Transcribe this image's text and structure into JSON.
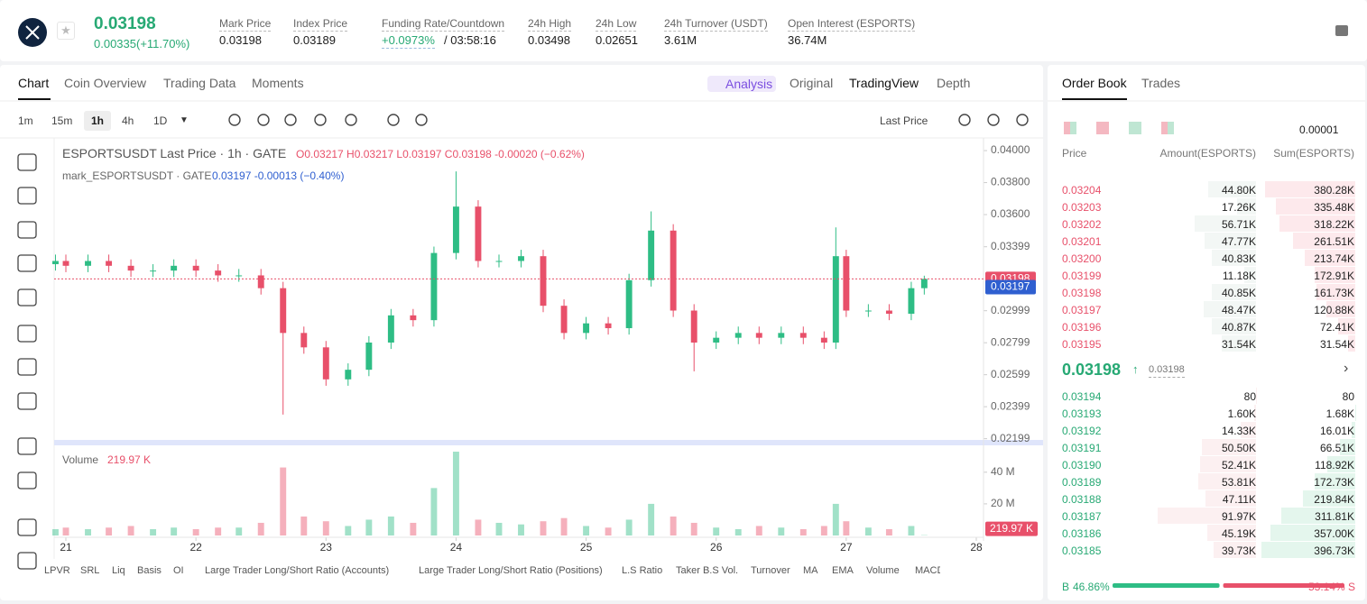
{
  "header": {
    "price": "0.03198",
    "change": "0.00335(+11.70%)",
    "stats": [
      {
        "label": "Mark Price",
        "value": "0.03198"
      },
      {
        "label": "Index Price",
        "value": "0.03189"
      },
      {
        "label": "Funding Rate/Countdown",
        "value": "+0.0973%",
        "extra": "/ 03:58:16"
      },
      {
        "label": "24h High",
        "value": "0.03498"
      },
      {
        "label": "24h Low",
        "value": "0.02651"
      },
      {
        "label": "24h Turnover (USDT)",
        "value": "3.61M"
      },
      {
        "label": "Open Interest (ESPORTS)",
        "value": "36.74M"
      }
    ]
  },
  "chart_tabs": [
    "Chart",
    "Coin Overview",
    "Trading Data",
    "Moments"
  ],
  "view_tabs": [
    "Analysis",
    "Original",
    "TradingView",
    "Depth"
  ],
  "intervals": [
    "1m",
    "15m",
    "1h",
    "4h",
    "1D"
  ],
  "price_source": "Last Price",
  "legend": {
    "title": "ESPORTSUSDT Last Price · 1h · GATE",
    "ohlc": "O0.03217 H0.03217 L0.03197 C0.03198 -0.00020 (−0.62%)",
    "mark": "mark_ESPORTSUSDT · GATE",
    "mark_values": "0.03197 -0.00013 (−0.40%)",
    "volume": "Volume"
  },
  "indicators": [
    "LPVR",
    "SRL",
    "Liq",
    "Basis",
    "OI",
    "Large Trader Long/Short Ratio (Accounts)",
    "Large Trader Long/Short Ratio (Positions)",
    "L.S Ratio",
    "Taker B.S Vol.",
    "Turnover",
    "MA",
    "EMA",
    "Volume",
    "MACD"
  ],
  "chart_data": {
    "type": "candlestick",
    "x": [
      20.92,
      21.0,
      21.17,
      21.33,
      21.5,
      21.67,
      21.83,
      22.0,
      22.17,
      22.33,
      22.5,
      22.67,
      22.83,
      23.0,
      23.17,
      23.33,
      23.5,
      23.67,
      23.83,
      24.0,
      24.17,
      24.33,
      24.5,
      24.67,
      24.83,
      25.0,
      25.17,
      25.33,
      25.5,
      25.67,
      25.83,
      26.0,
      26.17,
      26.33,
      26.5,
      26.67,
      26.83,
      26.92,
      27.0,
      27.17,
      27.33,
      27.5,
      27.6
    ],
    "open": [
      0.0329,
      0.0331,
      0.0328,
      0.0331,
      0.0328,
      0.0325,
      0.0325,
      0.0328,
      0.0325,
      0.0322,
      0.0322,
      0.0314,
      0.0286,
      0.0277,
      0.0257,
      0.0263,
      0.028,
      0.0297,
      0.0294,
      0.0336,
      0.0365,
      0.0331,
      0.0331,
      0.0334,
      0.0303,
      0.0286,
      0.0292,
      0.0289,
      0.0319,
      0.035,
      0.03,
      0.028,
      0.0283,
      0.0286,
      0.0283,
      0.0286,
      0.0283,
      0.028,
      0.0334,
      0.03,
      0.03,
      0.0298,
      0.0314
    ],
    "high": [
      0.0335,
      0.0335,
      0.0335,
      0.0335,
      0.0332,
      0.0329,
      0.0332,
      0.0332,
      0.0329,
      0.0326,
      0.0326,
      0.0318,
      0.029,
      0.0281,
      0.0267,
      0.0284,
      0.0301,
      0.0301,
      0.034,
      0.0387,
      0.0369,
      0.0335,
      0.0338,
      0.0338,
      0.0307,
      0.0296,
      0.0296,
      0.0323,
      0.0362,
      0.0354,
      0.0304,
      0.0287,
      0.029,
      0.029,
      0.029,
      0.029,
      0.0287,
      0.0352,
      0.0338,
      0.0304,
      0.0304,
      0.0318,
      0.03218
    ],
    "low": [
      0.0325,
      0.0324,
      0.0324,
      0.0324,
      0.0321,
      0.0321,
      0.0321,
      0.0321,
      0.0318,
      0.0318,
      0.031,
      0.0235,
      0.0273,
      0.0253,
      0.0253,
      0.0259,
      0.0276,
      0.029,
      0.029,
      0.0332,
      0.0327,
      0.0327,
      0.0327,
      0.0299,
      0.0282,
      0.0282,
      0.0285,
      0.0285,
      0.0315,
      0.0296,
      0.0262,
      0.0276,
      0.0279,
      0.0279,
      0.0279,
      0.0279,
      0.0276,
      0.0276,
      0.0296,
      0.0296,
      0.0294,
      0.0294,
      0.031
    ],
    "close": [
      0.0331,
      0.0328,
      0.0331,
      0.0328,
      0.0325,
      0.0325,
      0.0328,
      0.0325,
      0.0322,
      0.0322,
      0.0314,
      0.0286,
      0.0277,
      0.0257,
      0.0263,
      0.028,
      0.0297,
      0.0294,
      0.0336,
      0.0365,
      0.0331,
      0.0331,
      0.0334,
      0.0303,
      0.0286,
      0.0292,
      0.0289,
      0.0319,
      0.035,
      0.03,
      0.028,
      0.0283,
      0.0286,
      0.0283,
      0.0286,
      0.0283,
      0.028,
      0.0334,
      0.03,
      0.03,
      0.0298,
      0.0314,
      0.03198
    ],
    "volume": [
      4000000,
      5000000,
      4000000,
      5000000,
      6000000,
      4000000,
      5000000,
      4000000,
      5000000,
      5000000,
      8000000,
      43000000,
      12000000,
      9000000,
      6000000,
      10000000,
      12000000,
      8000000,
      30000000,
      53000000,
      10000000,
      8000000,
      7000000,
      9000000,
      11000000,
      6000000,
      5000000,
      10000000,
      20000000,
      12000000,
      8000000,
      5000000,
      4000000,
      6000000,
      5000000,
      4000000,
      6000000,
      20000000,
      9000000,
      5000000,
      4000000,
      6000000,
      219970
    ],
    "volume_label": "219.97 K",
    "xlim": [
      20.9,
      28.05
    ],
    "xticks": [
      21,
      22,
      23,
      24,
      25,
      26,
      27,
      28
    ],
    "ylim": [
      0.0218,
      0.04068
    ],
    "yticks": [
      {
        "value": 0.04,
        "label": "0.04000"
      },
      {
        "value": 0.038,
        "label": "0.03800"
      },
      {
        "value": 0.036,
        "label": "0.03600"
      },
      {
        "value": 0.03399,
        "label": "0.03399"
      },
      {
        "value": 0.02999,
        "label": "0.02999"
      },
      {
        "value": 0.02799,
        "label": "0.02799"
      },
      {
        "value": 0.02599,
        "label": "0.02599"
      },
      {
        "value": 0.02399,
        "label": "0.02399"
      },
      {
        "value": 0.02199,
        "label": "0.02199"
      }
    ],
    "volume_ylim": [
      0,
      57000000
    ],
    "volume_yticks": [
      {
        "value": 40000000,
        "label": "40 M"
      },
      {
        "value": 20000000,
        "label": "20 M"
      }
    ],
    "last_price": {
      "value": 0.03198,
      "label": "0.03198"
    },
    "mark_price": {
      "value": 0.03197,
      "label": "0.03197"
    },
    "up_color": "#2ebd85",
    "down_color": "#e8506a",
    "mark_color": "#2f5fd0"
  },
  "order_book": {
    "tabs": [
      "Order Book",
      "Trades"
    ],
    "precision": "0.00001",
    "columns": [
      "Price",
      "Amount(ESPORTS)",
      "Sum(ESPORTS)"
    ],
    "asks": [
      [
        "0.03204",
        "44.80K",
        "380.28K"
      ],
      [
        "0.03203",
        "17.26K",
        "335.48K"
      ],
      [
        "0.03202",
        "56.71K",
        "318.22K"
      ],
      [
        "0.03201",
        "47.77K",
        "261.51K"
      ],
      [
        "0.03200",
        "40.83K",
        "213.74K"
      ],
      [
        "0.03199",
        "11.18K",
        "172.91K"
      ],
      [
        "0.03198",
        "40.85K",
        "161.73K"
      ],
      [
        "0.03197",
        "48.47K",
        "120.88K"
      ],
      [
        "0.03196",
        "40.87K",
        "72.41K"
      ],
      [
        "0.03195",
        "31.54K",
        "31.54K"
      ]
    ],
    "mid_price": "0.03198",
    "mid_mark": "0.03198",
    "bids": [
      [
        "0.03194",
        "80",
        "80"
      ],
      [
        "0.03193",
        "1.60K",
        "1.68K"
      ],
      [
        "0.03192",
        "14.33K",
        "16.01K"
      ],
      [
        "0.03191",
        "50.50K",
        "66.51K"
      ],
      [
        "0.03190",
        "52.41K",
        "118.92K"
      ],
      [
        "0.03189",
        "53.81K",
        "172.73K"
      ],
      [
        "0.03188",
        "47.11K",
        "219.84K"
      ],
      [
        "0.03187",
        "91.97K",
        "311.81K"
      ],
      [
        "0.03186",
        "45.19K",
        "357.00K"
      ],
      [
        "0.03185",
        "39.73K",
        "396.73K"
      ]
    ],
    "ratio": {
      "labels": [
        "B",
        "S"
      ],
      "values": [
        46.86,
        53.14
      ],
      "value_labels": [
        "46.86%",
        "53.14%"
      ]
    }
  }
}
